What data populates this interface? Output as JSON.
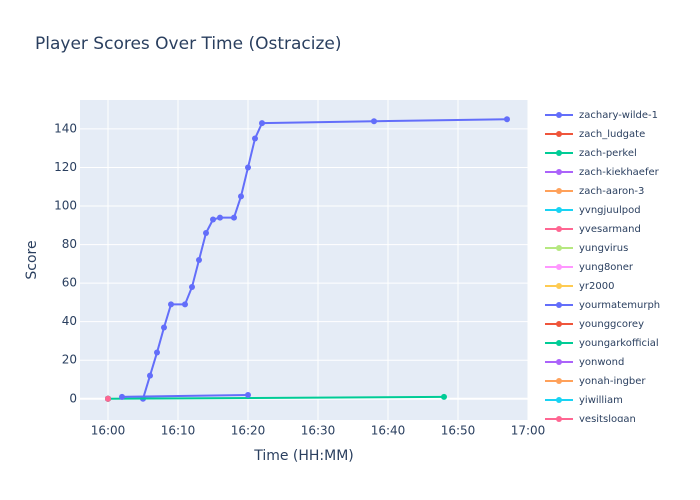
{
  "chart_data": {
    "type": "line",
    "title": "Player Scores Over Time (Ostracize)",
    "x_label": "Time (HH:MM)",
    "y_label": "Score",
    "xlim": [
      "15:56",
      "17:00"
    ],
    "xticks": [
      "16:00",
      "16:10",
      "16:20",
      "16:30",
      "16:40",
      "16:50",
      "17:00"
    ],
    "ylim": [
      -11,
      155
    ],
    "yticks": [
      0,
      20,
      40,
      60,
      80,
      100,
      120,
      140
    ],
    "grid": true,
    "legend": "right",
    "series": [
      {
        "name": "zachary-wilde-1",
        "color": "#636efa",
        "x": [
          "16:05",
          "16:06",
          "16:07",
          "16:08",
          "16:09",
          "16:11",
          "16:12",
          "16:13",
          "16:14",
          "16:15",
          "16:16",
          "16:18",
          "16:19",
          "16:20",
          "16:21",
          "16:22",
          "16:38",
          "16:57"
        ],
        "values": [
          0,
          12,
          24,
          37,
          49,
          49,
          58,
          72,
          86,
          93,
          94,
          94,
          105,
          120,
          135,
          143,
          144,
          145
        ]
      },
      {
        "name": "zach_ludgate",
        "color": "#EF553B",
        "x": [
          "16:00"
        ],
        "values": [
          0
        ]
      },
      {
        "name": "zach-perkel",
        "color": "#00cc96",
        "x": [
          "16:00",
          "16:48"
        ],
        "values": [
          0,
          1
        ]
      },
      {
        "name": "zach-kiekhaefer",
        "color": "#ab63fa",
        "x": [
          "16:00"
        ],
        "values": [
          0
        ]
      },
      {
        "name": "zach-aaron-3",
        "color": "#FFA15A",
        "x": [
          "16:00"
        ],
        "values": [
          0
        ]
      },
      {
        "name": "yvngjuulpod",
        "color": "#19d3f3",
        "x": [
          "16:00"
        ],
        "values": [
          0
        ]
      },
      {
        "name": "yvesarmand",
        "color": "#FF6692",
        "x": [
          "16:00"
        ],
        "values": [
          0
        ]
      },
      {
        "name": "yungvirus",
        "color": "#B6E880",
        "x": [
          "16:00"
        ],
        "values": [
          0
        ]
      },
      {
        "name": "yung8oner",
        "color": "#FF97FF",
        "x": [
          "16:00"
        ],
        "values": [
          0
        ]
      },
      {
        "name": "yr2000",
        "color": "#FECB52",
        "x": [
          "16:00"
        ],
        "values": [
          0
        ]
      },
      {
        "name": "yourmatemurph",
        "color": "#636efa",
        "x": [
          "16:02",
          "16:20"
        ],
        "values": [
          1,
          2
        ]
      },
      {
        "name": "younggcorey",
        "color": "#EF553B",
        "x": [
          "16:00"
        ],
        "values": [
          0
        ]
      },
      {
        "name": "youngarkofficial",
        "color": "#00cc96",
        "x": [
          "16:00"
        ],
        "values": [
          0
        ]
      },
      {
        "name": "yonwond",
        "color": "#ab63fa",
        "x": [
          "16:00"
        ],
        "values": [
          0
        ]
      },
      {
        "name": "yonah-ingber",
        "color": "#FFA15A",
        "x": [
          "16:00"
        ],
        "values": [
          0
        ]
      },
      {
        "name": "yiwilliam",
        "color": "#19d3f3",
        "x": [
          "16:00"
        ],
        "values": [
          0
        ]
      },
      {
        "name": "yesitslogan",
        "color": "#FF6692",
        "x": [
          "16:00"
        ],
        "values": [
          0
        ]
      }
    ]
  }
}
